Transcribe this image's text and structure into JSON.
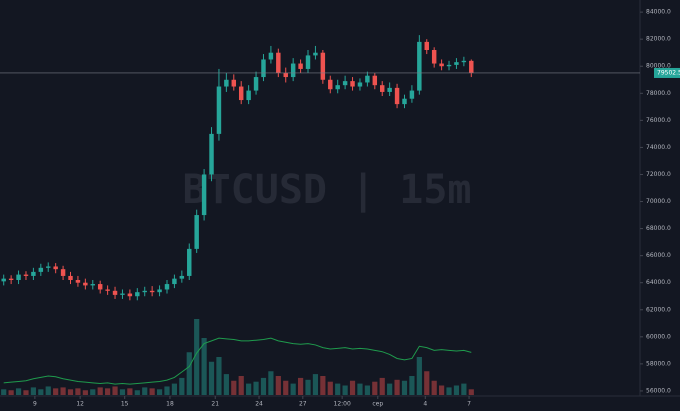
{
  "chart_data": {
    "type": "candlestick",
    "watermark": "BTCUSD | 15m",
    "up_color": "#26a69a",
    "down_color": "#ef5350",
    "indicator_color": "#1f9b4d",
    "grid": false,
    "xlim": [
      0,
      64
    ],
    "xticks": [
      {
        "value": 4.7,
        "label": "9"
      },
      {
        "value": 10.8,
        "label": "12"
      },
      {
        "value": 16.8,
        "label": "15"
      },
      {
        "value": 22.9,
        "label": "18"
      },
      {
        "value": 29.0,
        "label": "21"
      },
      {
        "value": 34.9,
        "label": "24"
      },
      {
        "value": 40.8,
        "label": "27"
      },
      {
        "value": 46.1,
        "label": "12:00"
      },
      {
        "value": 50.9,
        "label": "сер"
      },
      {
        "value": 57.3,
        "label": "4"
      },
      {
        "value": 63.2,
        "label": "7"
      }
    ],
    "ylim": [
      55700,
      84600
    ],
    "yticks": [
      {
        "value": 56000,
        "label": "56000.0"
      },
      {
        "value": 58000,
        "label": "58000.0"
      },
      {
        "value": 60000,
        "label": "60000.0"
      },
      {
        "value": 62000,
        "label": "62000.0"
      },
      {
        "value": 64000,
        "label": "64000.0"
      },
      {
        "value": 66000,
        "label": "66000.0"
      },
      {
        "value": 68000,
        "label": "68000.0"
      },
      {
        "value": 70000,
        "label": "70000.0"
      },
      {
        "value": 72000,
        "label": "72000.0"
      },
      {
        "value": 74000,
        "label": "74000.0"
      },
      {
        "value": 76000,
        "label": "76000.0"
      },
      {
        "value": 78000,
        "label": "78000.0"
      },
      {
        "value": 80000,
        "label": "80000.0"
      },
      {
        "value": 82000,
        "label": "82000.0"
      },
      {
        "value": 84000,
        "label": "84000.0"
      }
    ],
    "y2lim": [
      0,
      100
    ],
    "open": [
      64100,
      64300,
      64200,
      64600,
      64500,
      64800,
      65100,
      65200,
      65000,
      64500,
      64200,
      64000,
      63800,
      63900,
      63500,
      63400,
      63100,
      63200,
      63000,
      63300,
      63400,
      63300,
      63500,
      63900,
      64300,
      64500,
      66500,
      69000,
      72000,
      75000,
      78500,
      79000,
      78500,
      77500,
      78200,
      79200,
      80500,
      81000,
      79500,
      79200,
      80200,
      79800,
      80800,
      81000,
      79000,
      78300,
      78600,
      78900,
      78500,
      78800,
      79300,
      78600,
      78100,
      78400,
      77200,
      77600,
      78200,
      81800,
      81200,
      80200,
      80000,
      80100,
      80300,
      80400
    ],
    "high": [
      64600,
      64550,
      64900,
      64850,
      65100,
      65400,
      65500,
      65450,
      65250,
      64800,
      64500,
      64300,
      64200,
      64150,
      63800,
      63700,
      63500,
      63500,
      63600,
      63700,
      63750,
      63800,
      64200,
      64600,
      64900,
      66900,
      69400,
      72400,
      75500,
      79800,
      79500,
      79400,
      78900,
      78600,
      79600,
      80900,
      81500,
      81300,
      79900,
      80600,
      80500,
      81200,
      81500,
      81200,
      79300,
      79000,
      79300,
      79200,
      79100,
      79600,
      79500,
      78900,
      78800,
      78700,
      77900,
      78600,
      82300,
      82000,
      81400,
      80500,
      80400,
      80600,
      80700,
      80500
    ],
    "low": [
      63800,
      63900,
      63900,
      64200,
      64200,
      64500,
      64800,
      64700,
      64200,
      63900,
      63700,
      63500,
      63500,
      63200,
      63100,
      62800,
      62800,
      62700,
      62700,
      63000,
      63000,
      63000,
      63200,
      63600,
      64000,
      64200,
      66200,
      68600,
      71500,
      74500,
      78100,
      78200,
      77200,
      77200,
      77900,
      78900,
      80200,
      79200,
      78800,
      78900,
      79500,
      79500,
      80500,
      78700,
      78000,
      78000,
      78300,
      78200,
      78200,
      78500,
      78300,
      77800,
      77800,
      76900,
      76900,
      77300,
      77900,
      80900,
      79900,
      79700,
      79700,
      79800,
      80000,
      79200
    ],
    "close": [
      64300,
      64200,
      64600,
      64500,
      64800,
      65100,
      65200,
      65000,
      64500,
      64200,
      64000,
      63800,
      63900,
      63500,
      63400,
      63100,
      63200,
      63000,
      63300,
      63400,
      63300,
      63500,
      63900,
      64300,
      64500,
      66500,
      69000,
      72000,
      75000,
      78500,
      79000,
      78500,
      77500,
      78200,
      79200,
      80500,
      81000,
      79500,
      79200,
      80200,
      79800,
      80800,
      81000,
      79000,
      78300,
      78600,
      78900,
      78500,
      78800,
      79300,
      78600,
      78100,
      78400,
      77200,
      77600,
      78200,
      81800,
      81200,
      80200,
      80000,
      80100,
      80300,
      80400,
      79502.5
    ],
    "indicator": [
      56600,
      56650,
      56700,
      56750,
      56900,
      57000,
      57100,
      57050,
      56900,
      56800,
      56700,
      56650,
      56600,
      56550,
      56600,
      56500,
      56550,
      56500,
      56550,
      56600,
      56650,
      56700,
      56800,
      57000,
      57400,
      57800,
      58800,
      59500,
      59700,
      59900,
      59850,
      59800,
      59700,
      59700,
      59750,
      59800,
      59900,
      59700,
      59600,
      59500,
      59450,
      59500,
      59400,
      59200,
      59100,
      59150,
      59200,
      59100,
      59150,
      59100,
      59000,
      58900,
      58700,
      58400,
      58300,
      58400,
      59300,
      59200,
      59000,
      59050,
      59000,
      58950,
      59000,
      58850
    ],
    "volume": [
      6,
      5,
      7,
      5,
      8,
      6,
      9,
      7,
      8,
      6,
      7,
      5,
      6,
      8,
      7,
      9,
      6,
      7,
      5,
      8,
      7,
      6,
      9,
      12,
      18,
      45,
      80,
      60,
      35,
      40,
      22,
      15,
      20,
      12,
      14,
      18,
      25,
      20,
      15,
      12,
      18,
      16,
      22,
      20,
      14,
      12,
      10,
      15,
      12,
      10,
      14,
      18,
      12,
      16,
      15,
      20,
      40,
      25,
      15,
      10,
      8,
      10,
      12,
      6
    ]
  }
}
